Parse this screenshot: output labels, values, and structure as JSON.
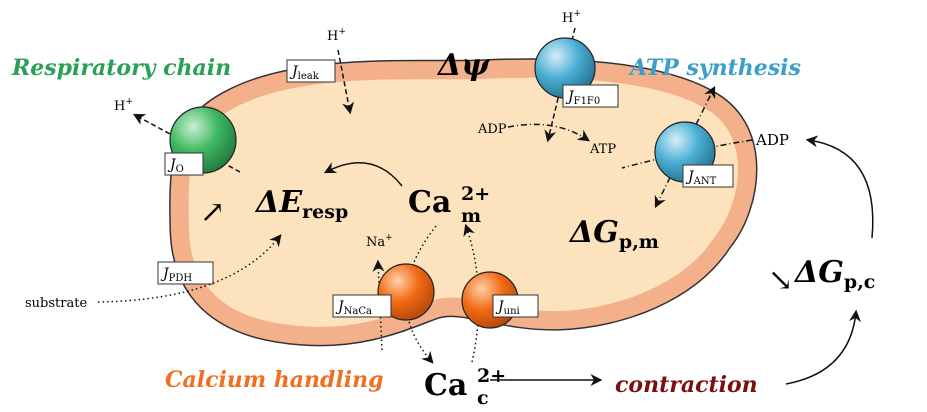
{
  "labels": {
    "respiratory_chain": "Respiratory chain",
    "atp_synthesis": "ATP synthesis",
    "calcium_handling": "Calcium handling",
    "contraction": "contraction",
    "substrate": "substrate"
  },
  "symbols": {
    "delta_psi": "Δψ",
    "delta_e_resp": {
      "main": "ΔE",
      "sub": "resp"
    },
    "ca_m": {
      "main": "Ca",
      "sub": "m",
      "sup": "2+"
    },
    "ca_c": {
      "main": "Ca",
      "sub": "c",
      "sup": "2+"
    },
    "delta_g_pm": {
      "main": "ΔG",
      "sub": "p,m"
    },
    "delta_g_pc": {
      "main": "ΔG",
      "sub": "p,c"
    }
  },
  "ions": [
    {
      "main": "H",
      "sup": "+"
    },
    {
      "main": "H",
      "sup": "+"
    },
    {
      "main": "H",
      "sup": "+"
    },
    {
      "main": "Na",
      "sup": "+"
    }
  ],
  "species": [
    "ADP",
    "ATP",
    "ADP"
  ],
  "fluxes": [
    {
      "main": "J",
      "sub": "leak"
    },
    {
      "main": "J",
      "sub": "O"
    },
    {
      "main": "J",
      "sub": "F1F0"
    },
    {
      "main": "J",
      "sub": "ANT"
    },
    {
      "main": "J",
      "sub": "PDH"
    },
    {
      "main": "J",
      "sub": "NaCa"
    },
    {
      "main": "J",
      "sub": "uni"
    }
  ],
  "arrows": [
    "↗",
    "↘"
  ]
}
